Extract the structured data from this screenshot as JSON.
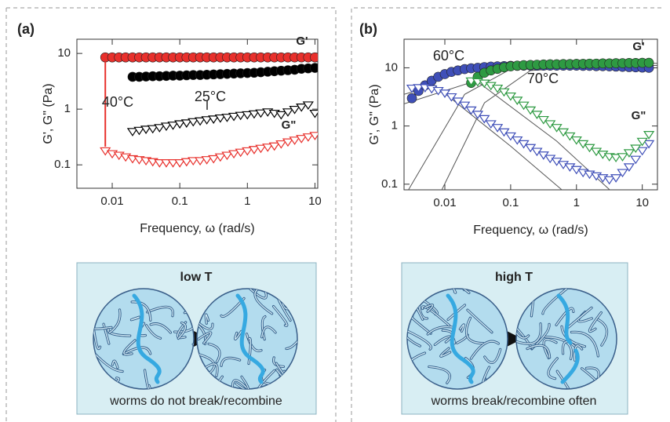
{
  "chart_data": [
    {
      "type": "scatter",
      "panel_label": "(a)",
      "xlabel": "Frequency, ω (rad/s)",
      "ylabel": "G', G\" (Pa)",
      "log_x": true,
      "log_y": true,
      "xlim": [
        0.003,
        11
      ],
      "ylim": [
        0.038,
        18
      ],
      "xticks": [
        0.01,
        0.1,
        1,
        10
      ],
      "yticks": [
        0.1,
        1,
        10
      ],
      "annotations": [
        "G'",
        "G\"",
        "40°C",
        "25°C"
      ],
      "series": [
        {
          "color": "#e8302c",
          "marker": "circle",
          "filled": true,
          "x": [
            0.0079,
            0.01,
            0.0126,
            0.0158,
            0.02,
            0.0251,
            0.0316,
            0.0398,
            0.0501,
            0.0631,
            0.0794,
            0.1,
            0.126,
            0.158,
            0.2,
            0.251,
            0.316,
            0.398,
            0.501,
            0.631,
            0.794,
            1,
            1.26,
            1.58,
            2,
            2.51,
            3.16,
            3.98,
            5.01,
            6.31,
            7.94,
            10
          ],
          "values": [
            8.5,
            8.5,
            8.5,
            8.5,
            8.5,
            8.5,
            8.5,
            8.5,
            8.5,
            8.5,
            8.5,
            8.5,
            8.5,
            8.5,
            8.5,
            8.5,
            8.5,
            8.5,
            8.5,
            8.5,
            8.5,
            8.5,
            8.5,
            8.5,
            8.5,
            8.5,
            8.5,
            8.5,
            8.5,
            8.5,
            8.5,
            8.5
          ]
        },
        {
          "color": "#000000",
          "marker": "circle",
          "filled": true,
          "x": [
            0.02,
            0.0251,
            0.0316,
            0.0398,
            0.0501,
            0.0631,
            0.0794,
            0.1,
            0.126,
            0.158,
            0.2,
            0.251,
            0.316,
            0.398,
            0.501,
            0.631,
            0.794,
            1,
            1.26,
            1.58,
            2,
            2.51,
            3.16,
            3.98,
            5.01,
            6.31,
            7.94,
            10
          ],
          "values": [
            3.8,
            3.8,
            3.85,
            3.9,
            3.9,
            3.95,
            4,
            4,
            4.05,
            4.1,
            4.1,
            4.15,
            4.2,
            4.25,
            4.3,
            4.35,
            4.4,
            4.45,
            4.5,
            4.6,
            4.7,
            4.8,
            4.9,
            5,
            5.1,
            5.3,
            5.4,
            5.5
          ]
        },
        {
          "color": "#000000",
          "marker": "triangle",
          "filled": false,
          "x": [
            0.02,
            0.0251,
            0.0316,
            0.0398,
            0.0501,
            0.0631,
            0.0794,
            0.1,
            0.126,
            0.158,
            0.2,
            0.251,
            0.316,
            0.398,
            0.501,
            0.631,
            0.794,
            1,
            1.26,
            1.58,
            2,
            2.51,
            3.16,
            3.98,
            5.01,
            6.31,
            7.94,
            10
          ],
          "values": [
            0.4,
            0.42,
            0.44,
            0.45,
            0.47,
            0.5,
            0.52,
            0.55,
            0.57,
            0.6,
            0.62,
            0.65,
            0.67,
            0.7,
            0.72,
            0.75,
            0.78,
            0.8,
            0.83,
            0.86,
            0.9,
            0.85,
            0.8,
            0.9,
            1,
            1.1,
            1.2,
            0.85
          ]
        },
        {
          "color": "#e8302c",
          "marker": "triangle",
          "filled": false,
          "x": [
            0.0079,
            0.01,
            0.0126,
            0.0158,
            0.02,
            0.0251,
            0.0316,
            0.0398,
            0.0501,
            0.0631,
            0.0794,
            0.1,
            0.126,
            0.158,
            0.2,
            0.251,
            0.316,
            0.398,
            0.501,
            0.631,
            0.794,
            1,
            1.26,
            1.58,
            2,
            2.51,
            3.16,
            3.98,
            5.01,
            6.31,
            7.94,
            10
          ],
          "values": [
            0.18,
            0.16,
            0.15,
            0.14,
            0.13,
            0.125,
            0.12,
            0.115,
            0.11,
            0.11,
            0.11,
            0.11,
            0.115,
            0.12,
            0.12,
            0.125,
            0.13,
            0.14,
            0.15,
            0.16,
            0.17,
            0.18,
            0.19,
            0.2,
            0.21,
            0.22,
            0.24,
            0.26,
            0.28,
            0.3,
            0.32,
            0.34
          ]
        }
      ]
    },
    {
      "type": "scatter",
      "panel_label": "(b)",
      "xlabel": "Frequency, ω (rad/s)",
      "ylabel": "G', G\" (Pa)",
      "log_x": true,
      "log_y": true,
      "xlim": [
        0.0024,
        17
      ],
      "ylim": [
        0.08,
        31
      ],
      "xticks": [
        0.01,
        0.1,
        1,
        10
      ],
      "yticks": [
        0.1,
        1,
        10
      ],
      "annotations": [
        "60°C",
        "70°C",
        "G'",
        "G\""
      ],
      "series": [
        {
          "color": "#555555",
          "marker": "line",
          "filled": false,
          "x": [
            0.0024,
            0.007,
            0.1,
            0.6
          ],
          "values": [
            3.5,
            5,
            0.45,
            0.08
          ]
        },
        {
          "color": "#555555",
          "marker": "line",
          "filled": false,
          "x": [
            0.0028,
            0.02,
            0.1,
            17
          ],
          "values": [
            0.08,
            3.5,
            9.5,
            11
          ]
        },
        {
          "color": "#555555",
          "marker": "line",
          "filled": false,
          "x": [
            0.0024,
            0.03,
            0.5,
            3.2
          ],
          "values": [
            2.4,
            6,
            0.55,
            0.08
          ]
        },
        {
          "color": "#555555",
          "marker": "line",
          "filled": false,
          "x": [
            0.009,
            0.04,
            0.2,
            17
          ],
          "values": [
            0.08,
            2.5,
            9,
            12
          ]
        },
        {
          "color": "#3f4fb8",
          "marker": "circle",
          "filled": true,
          "x": [
            0.00316,
            0.00398,
            0.00501,
            0.00631,
            0.00794,
            0.01,
            0.0126,
            0.0158,
            0.02,
            0.0251,
            0.0316,
            0.0398,
            0.0501,
            0.0631,
            0.0794,
            0.1,
            0.126,
            0.158,
            0.2,
            0.251,
            0.316,
            0.398,
            0.501,
            0.631,
            0.794,
            1,
            1.26,
            1.58,
            2,
            2.51,
            3.16,
            3.98,
            5.01,
            6.31,
            7.94,
            10,
            12.6
          ],
          "values": [
            3,
            4,
            5,
            6,
            7,
            7.8,
            8.5,
            9,
            9.5,
            9.8,
            10,
            10.3,
            10.5,
            10.6,
            10.7,
            10.8,
            10.8,
            10.9,
            10.9,
            10.9,
            10.9,
            10.9,
            10.9,
            10.9,
            10.9,
            10.9,
            10.8,
            10.8,
            10.7,
            10.7,
            10.6,
            10.5,
            10.4,
            10.3,
            10.2,
            10.1,
            10
          ]
        },
        {
          "color": "#2e9a42",
          "marker": "circle",
          "filled": true,
          "x": [
            0.0251,
            0.0316,
            0.0398,
            0.0501,
            0.0631,
            0.0794,
            0.1,
            0.126,
            0.158,
            0.2,
            0.251,
            0.316,
            0.398,
            0.501,
            0.631,
            0.794,
            1,
            1.26,
            1.58,
            2,
            2.51,
            3.16,
            3.98,
            5.01,
            6.31,
            7.94,
            10,
            12.6
          ],
          "values": [
            5.5,
            7,
            8.2,
            9,
            9.6,
            10.2,
            10.6,
            10.9,
            11.1,
            11.2,
            11.3,
            11.4,
            11.5,
            11.5,
            11.6,
            11.6,
            11.7,
            11.7,
            11.8,
            11.8,
            11.9,
            11.9,
            12,
            12,
            12.1,
            12.1,
            12.2,
            12.2
          ]
        },
        {
          "color": "#3f4fb8",
          "marker": "triangle",
          "filled": false,
          "x": [
            0.00316,
            0.00398,
            0.00501,
            0.00631,
            0.00794,
            0.01,
            0.0126,
            0.0158,
            0.02,
            0.0251,
            0.0316,
            0.0398,
            0.0501,
            0.0631,
            0.0794,
            0.1,
            0.126,
            0.158,
            0.2,
            0.251,
            0.316,
            0.398,
            0.501,
            0.631,
            0.794,
            1,
            1.26,
            1.58,
            2,
            2.51,
            3.16,
            3.98,
            5.01,
            6.31,
            7.94,
            10,
            12.6
          ],
          "values": [
            4.5,
            4.6,
            4.6,
            4.4,
            4.1,
            3.7,
            3.2,
            2.7,
            2.3,
            1.9,
            1.6,
            1.35,
            1.1,
            0.95,
            0.8,
            0.68,
            0.58,
            0.5,
            0.43,
            0.37,
            0.32,
            0.28,
            0.25,
            0.22,
            0.2,
            0.18,
            0.16,
            0.15,
            0.14,
            0.13,
            0.12,
            0.13,
            0.16,
            0.2,
            0.27,
            0.38,
            0.5
          ]
        },
        {
          "color": "#2e9a42",
          "marker": "triangle",
          "filled": false,
          "x": [
            0.0251,
            0.0316,
            0.0398,
            0.0501,
            0.0631,
            0.0794,
            0.1,
            0.126,
            0.158,
            0.2,
            0.251,
            0.316,
            0.398,
            0.501,
            0.631,
            0.794,
            1,
            1.26,
            1.58,
            2,
            2.51,
            3.16,
            3.98,
            5.01,
            6.31,
            7.94,
            10,
            12.6
          ],
          "values": [
            6,
            5.8,
            5.5,
            5,
            4.5,
            3.9,
            3.3,
            2.8,
            2.3,
            1.9,
            1.6,
            1.3,
            1.1,
            0.95,
            0.8,
            0.68,
            0.58,
            0.5,
            0.43,
            0.37,
            0.33,
            0.3,
            0.29,
            0.3,
            0.35,
            0.42,
            0.55,
            0.72
          ]
        }
      ]
    }
  ],
  "diagrams": [
    {
      "title": "low T",
      "caption": "worms do not break/recombine"
    },
    {
      "title": "high T",
      "caption": "worms break/recombine often"
    }
  ]
}
